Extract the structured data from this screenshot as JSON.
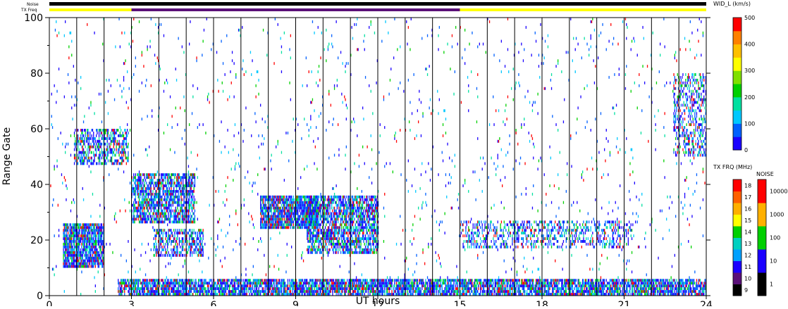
{
  "chart_data": {
    "type": "heatmap",
    "title": "",
    "xlabel": "UT hours",
    "ylabel": "Range Gate",
    "xlim": [
      0,
      24
    ],
    "ylim": [
      0,
      100
    ],
    "xticks": [
      "0",
      "3",
      "6",
      "9",
      "12",
      "15",
      "18",
      "21",
      "24"
    ],
    "yticks": [
      "0",
      "20",
      "40",
      "60",
      "80",
      "100"
    ],
    "vertical_lines_at_hours": [
      1,
      2,
      3,
      4,
      5,
      6,
      7,
      8,
      9,
      10,
      11,
      12,
      13,
      14,
      15,
      16,
      17,
      18,
      19,
      20,
      21,
      22,
      23
    ],
    "status_bar": {
      "noise_label": "Noise",
      "txfreq_label": "TX Freq",
      "segments": [
        {
          "start": 0,
          "end": 3,
          "color": "#ffff00"
        },
        {
          "start": 3,
          "end": 15,
          "color": "#5a1078"
        },
        {
          "start": 15,
          "end": 24,
          "color": "#ffff00"
        }
      ]
    },
    "colorbars": {
      "width": {
        "label": "WID_L (km/s)",
        "ticks": [
          "0",
          "100",
          "200",
          "300",
          "400",
          "500"
        ],
        "range": [
          0,
          500
        ],
        "colors": [
          "#1a00ff",
          "#0060ff",
          "#00c8ff",
          "#00e0a0",
          "#00d000",
          "#80e000",
          "#ffff00",
          "#ffc000",
          "#ff8000",
          "#ff0000"
        ]
      },
      "txfreq": {
        "label": "TX FRQ (MHz)",
        "ticks": [
          "9",
          "10",
          "11",
          "12",
          "13",
          "14",
          "15",
          "16",
          "17",
          "18"
        ],
        "colors": [
          "#000000",
          "#5a1078",
          "#1a00ff",
          "#00a0ff",
          "#00d0c0",
          "#00d000",
          "#ffff00",
          "#ffb000",
          "#ff6000",
          "#ff0000"
        ]
      },
      "noise": {
        "label": "NOISE",
        "ticks": [
          "1",
          "10",
          "100",
          "1000",
          "10000"
        ],
        "colors": [
          "#000000",
          "#1a00ff",
          "#00d000",
          "#ffb000",
          "#ff0000"
        ]
      }
    },
    "regions": [
      {
        "t0": 0.5,
        "t1": 2.0,
        "g0": 10,
        "g1": 26,
        "density": 0.85
      },
      {
        "t0": 0.9,
        "t1": 2.9,
        "g0": 47,
        "g1": 60,
        "density": 0.55
      },
      {
        "t0": 3.0,
        "t1": 5.3,
        "g0": 26,
        "g1": 44,
        "density": 0.7
      },
      {
        "t0": 3.8,
        "t1": 5.6,
        "g0": 14,
        "g1": 24,
        "density": 0.55
      },
      {
        "t0": 7.7,
        "t1": 9.8,
        "g0": 24,
        "g1": 36,
        "density": 0.85
      },
      {
        "t0": 9.4,
        "t1": 12.0,
        "g0": 15,
        "g1": 36,
        "density": 0.7
      },
      {
        "t0": 15.0,
        "t1": 21.3,
        "g0": 17,
        "g1": 27,
        "density": 0.35
      },
      {
        "t0": 22.8,
        "t1": 24.0,
        "g0": 50,
        "g1": 80,
        "density": 0.4
      },
      {
        "t0": 2.5,
        "t1": 24.0,
        "g0": 0,
        "g1": 6,
        "density": 0.8
      },
      {
        "t0": 0.0,
        "t1": 24.0,
        "g0": 0,
        "g1": 100,
        "density": 0.02
      }
    ]
  }
}
